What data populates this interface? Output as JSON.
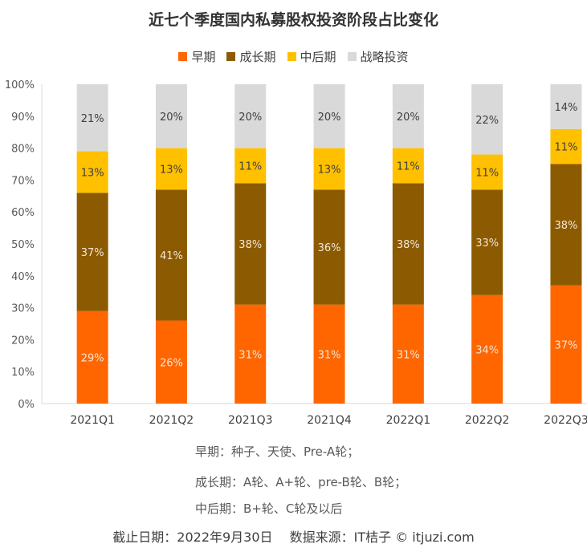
{
  "chart_data": {
    "type": "bar",
    "stacked": true,
    "title": "近七个季度国内私募股权投资阶段占比变化",
    "categories": [
      "2021Q1",
      "2021Q2",
      "2021Q3",
      "2021Q4",
      "2022Q1",
      "2022Q2",
      "2022Q3"
    ],
    "series": [
      {
        "name": "早期",
        "color": "#FF6600",
        "values": [
          29,
          26,
          31,
          31,
          31,
          34,
          37
        ]
      },
      {
        "name": "成长期",
        "color": "#8C5A00",
        "values": [
          37,
          41,
          38,
          36,
          38,
          33,
          38
        ]
      },
      {
        "name": "中后期",
        "color": "#FFC000",
        "values": [
          13,
          13,
          11,
          13,
          11,
          11,
          11
        ]
      },
      {
        "name": "战略投资",
        "color": "#D9D9D9",
        "values": [
          21,
          20,
          20,
          20,
          20,
          22,
          14
        ]
      }
    ],
    "ylim": [
      0,
      100
    ],
    "yticks": [
      "0%",
      "10%",
      "20%",
      "30%",
      "40%",
      "50%",
      "60%",
      "70%",
      "80%",
      "90%",
      "100%"
    ],
    "legend_position": "top",
    "grid": false,
    "data_label_suffix": "%"
  },
  "notes": [
    "早期：种子、天使、Pre-A轮；",
    "成长期：A轮、A+轮、pre-B轮、B轮；",
    "中后期：B+轮、C轮及以后"
  ],
  "footer": "截止日期：2022年9月30日　 数据来源：IT桔子 © itjuzi.com"
}
